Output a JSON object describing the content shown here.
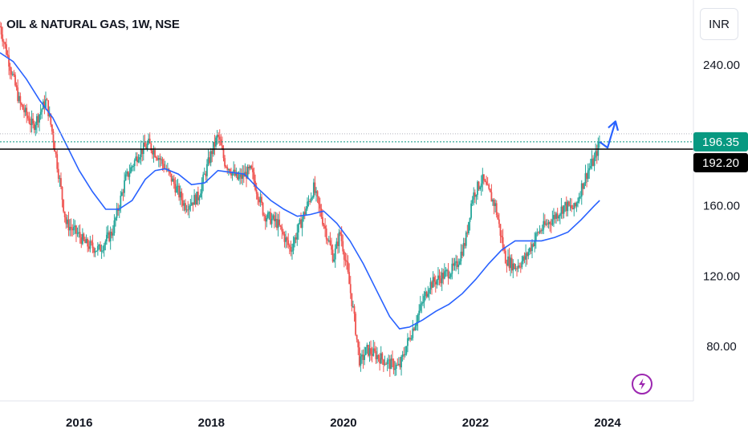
{
  "header": {
    "title": "OIL & NATURAL GAS, 1W, NSE",
    "currency": "INR"
  },
  "price_tags": {
    "last": "196.35",
    "level": "192.20"
  },
  "colors": {
    "up": "#26a69a",
    "down": "#ef5350",
    "ma": "#2962ff",
    "level_line": "#000000",
    "last_tag": "#089981",
    "level_tag": "#000000",
    "arrow": "#2962ff",
    "badge": "#9c27b0"
  },
  "icons": {
    "badge": "lightning-icon"
  },
  "chart_data": {
    "type": "candlestick",
    "title": "OIL & NATURAL GAS, 1W, NSE",
    "xlabel": "",
    "ylabel": "",
    "y_ticks": [
      "240.00",
      "160.00",
      "120.00",
      "80.00"
    ],
    "x_ticks": [
      "2016",
      "2018",
      "2020",
      "2022",
      "2024"
    ],
    "ylim": [
      49,
      277
    ],
    "xlim": [
      2014.8,
      2025.3
    ],
    "grid": false,
    "horizontal_level": 192.2,
    "last_price": 196.35,
    "price_path": [
      [
        2014.8,
        262
      ],
      [
        2014.95,
        240
      ],
      [
        2015.1,
        218
      ],
      [
        2015.3,
        205
      ],
      [
        2015.5,
        220
      ],
      [
        2015.6,
        200
      ],
      [
        2015.8,
        150
      ],
      [
        2016.0,
        143
      ],
      [
        2016.1,
        138
      ],
      [
        2016.3,
        135
      ],
      [
        2016.5,
        145
      ],
      [
        2016.7,
        175
      ],
      [
        2016.9,
        190
      ],
      [
        2017.05,
        195
      ],
      [
        2017.2,
        188
      ],
      [
        2017.4,
        175
      ],
      [
        2017.6,
        160
      ],
      [
        2017.8,
        165
      ],
      [
        2018.0,
        190
      ],
      [
        2018.1,
        200
      ],
      [
        2018.2,
        185
      ],
      [
        2018.4,
        175
      ],
      [
        2018.6,
        180
      ],
      [
        2018.8,
        155
      ],
      [
        2019.0,
        150
      ],
      [
        2019.2,
        135
      ],
      [
        2019.4,
        155
      ],
      [
        2019.55,
        170
      ],
      [
        2019.7,
        150
      ],
      [
        2019.85,
        130
      ],
      [
        2019.95,
        145
      ],
      [
        2020.05,
        125
      ],
      [
        2020.15,
        100
      ],
      [
        2020.25,
        70
      ],
      [
        2020.35,
        78
      ],
      [
        2020.5,
        75
      ],
      [
        2020.7,
        70
      ],
      [
        2020.85,
        68
      ],
      [
        2020.95,
        80
      ],
      [
        2021.1,
        95
      ],
      [
        2021.3,
        115
      ],
      [
        2021.5,
        120
      ],
      [
        2021.7,
        125
      ],
      [
        2021.85,
        140
      ],
      [
        2021.95,
        165
      ],
      [
        2022.1,
        175
      ],
      [
        2022.3,
        160
      ],
      [
        2022.45,
        130
      ],
      [
        2022.6,
        125
      ],
      [
        2022.75,
        130
      ],
      [
        2022.95,
        145
      ],
      [
        2023.15,
        152
      ],
      [
        2023.35,
        160
      ],
      [
        2023.5,
        158
      ],
      [
        2023.6,
        170
      ],
      [
        2023.7,
        180
      ],
      [
        2023.8,
        186
      ],
      [
        2023.88,
        196.35
      ]
    ],
    "series": [
      {
        "type": "moving_average",
        "points": [
          [
            2014.8,
            247
          ],
          [
            2015.0,
            242
          ],
          [
            2015.2,
            232
          ],
          [
            2015.4,
            220
          ],
          [
            2015.6,
            210
          ],
          [
            2015.8,
            195
          ],
          [
            2016.0,
            180
          ],
          [
            2016.2,
            168
          ],
          [
            2016.4,
            158
          ],
          [
            2016.6,
            158
          ],
          [
            2016.8,
            163
          ],
          [
            2017.0,
            175
          ],
          [
            2017.15,
            180
          ],
          [
            2017.3,
            181
          ],
          [
            2017.5,
            178
          ],
          [
            2017.7,
            172
          ],
          [
            2017.9,
            173
          ],
          [
            2018.1,
            180
          ],
          [
            2018.3,
            179
          ],
          [
            2018.5,
            178
          ],
          [
            2018.7,
            170
          ],
          [
            2018.9,
            163
          ],
          [
            2019.1,
            158
          ],
          [
            2019.3,
            154
          ],
          [
            2019.5,
            155
          ],
          [
            2019.7,
            157
          ],
          [
            2019.9,
            150
          ],
          [
            2020.1,
            140
          ],
          [
            2020.3,
            127
          ],
          [
            2020.5,
            112
          ],
          [
            2020.7,
            97
          ],
          [
            2020.85,
            90
          ],
          [
            2021.0,
            91
          ],
          [
            2021.2,
            95
          ],
          [
            2021.4,
            100
          ],
          [
            2021.6,
            104
          ],
          [
            2021.8,
            110
          ],
          [
            2022.0,
            118
          ],
          [
            2022.2,
            127
          ],
          [
            2022.4,
            135
          ],
          [
            2022.6,
            140
          ],
          [
            2022.8,
            140
          ],
          [
            2023.0,
            140
          ],
          [
            2023.2,
            142
          ],
          [
            2023.4,
            145
          ],
          [
            2023.6,
            152
          ],
          [
            2023.8,
            160
          ],
          [
            2023.88,
            163
          ]
        ]
      }
    ],
    "projection_arrow": [
      [
        2023.88,
        196.35
      ],
      [
        2024.0,
        193
      ],
      [
        2024.12,
        208
      ]
    ]
  }
}
